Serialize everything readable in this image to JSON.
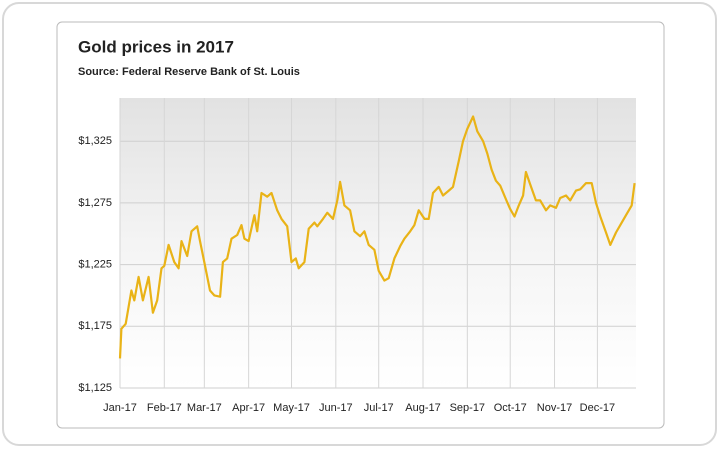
{
  "chart_data": {
    "type": "line",
    "title": "Gold prices in 2017",
    "subtitle": "Source: Federal Reserve Bank of St. Louis",
    "color": "#e9b317",
    "grid": true,
    "xlim": [
      0,
      361
    ],
    "xticks": [
      {
        "value": 0,
        "label": "Jan-17"
      },
      {
        "value": 31,
        "label": "Feb-17"
      },
      {
        "value": 59,
        "label": "Mar-17"
      },
      {
        "value": 90,
        "label": "Apr-17"
      },
      {
        "value": 120,
        "label": "May-17"
      },
      {
        "value": 151,
        "label": "Jun-17"
      },
      {
        "value": 181,
        "label": "Jul-17"
      },
      {
        "value": 212,
        "label": "Aug-17"
      },
      {
        "value": 243,
        "label": "Sep-17"
      },
      {
        "value": 273,
        "label": "Oct-17"
      },
      {
        "value": 304,
        "label": "Nov-17"
      },
      {
        "value": 334,
        "label": "Dec-17"
      }
    ],
    "ylim": [
      1125,
      1360
    ],
    "yticks": [
      {
        "value": 1125,
        "label": "$1,125"
      },
      {
        "value": 1175,
        "label": "$1,175"
      },
      {
        "value": 1225,
        "label": "$1,225"
      },
      {
        "value": 1275,
        "label": "$1,275"
      },
      {
        "value": 1325,
        "label": "$1,325"
      }
    ],
    "x": [
      0,
      1,
      4,
      8,
      10,
      13,
      16,
      20,
      23,
      26,
      29,
      31,
      34,
      38,
      41,
      43,
      47,
      50,
      54,
      56,
      59,
      63,
      66,
      70,
      72,
      75,
      78,
      82,
      85,
      87,
      90,
      94,
      96,
      99,
      103,
      106,
      110,
      113,
      117,
      120,
      123,
      125,
      129,
      132,
      136,
      138,
      142,
      145,
      149,
      152,
      154,
      157,
      161,
      164,
      168,
      171,
      174,
      178,
      181,
      185,
      188,
      192,
      196,
      199,
      203,
      206,
      209,
      213,
      216,
      219,
      223,
      226,
      230,
      233,
      237,
      240,
      243,
      247,
      250,
      254,
      257,
      260,
      263,
      266,
      270,
      273,
      276,
      279,
      282,
      284,
      287,
      291,
      294,
      298,
      301,
      305,
      308,
      312,
      315,
      319,
      322,
      326,
      330,
      333,
      336,
      340,
      343,
      347,
      350,
      354,
      358,
      360
    ],
    "values": [
      1149,
      1173,
      1177,
      1204,
      1196,
      1215,
      1196,
      1215,
      1186,
      1196,
      1222,
      1224,
      1241,
      1227,
      1222,
      1244,
      1232,
      1252,
      1256,
      1244,
      1227,
      1204,
      1200,
      1199,
      1227,
      1230,
      1246,
      1249,
      1257,
      1246,
      1244,
      1265,
      1252,
      1283,
      1280,
      1283,
      1269,
      1262,
      1256,
      1227,
      1230,
      1222,
      1227,
      1254,
      1259,
      1256,
      1262,
      1267,
      1262,
      1277,
      1292,
      1273,
      1269,
      1252,
      1248,
      1252,
      1241,
      1237,
      1220,
      1212,
      1214,
      1230,
      1240,
      1246,
      1252,
      1257,
      1269,
      1262,
      1262,
      1283,
      1288,
      1281,
      1285,
      1288,
      1309,
      1325,
      1335,
      1345,
      1333,
      1325,
      1315,
      1302,
      1293,
      1289,
      1278,
      1270,
      1264,
      1273,
      1281,
      1300,
      1290,
      1277,
      1277,
      1269,
      1273,
      1271,
      1279,
      1281,
      1277,
      1285,
      1286,
      1291,
      1291,
      1275,
      1264,
      1251,
      1241,
      1251,
      1257,
      1265,
      1273,
      1291
    ]
  }
}
